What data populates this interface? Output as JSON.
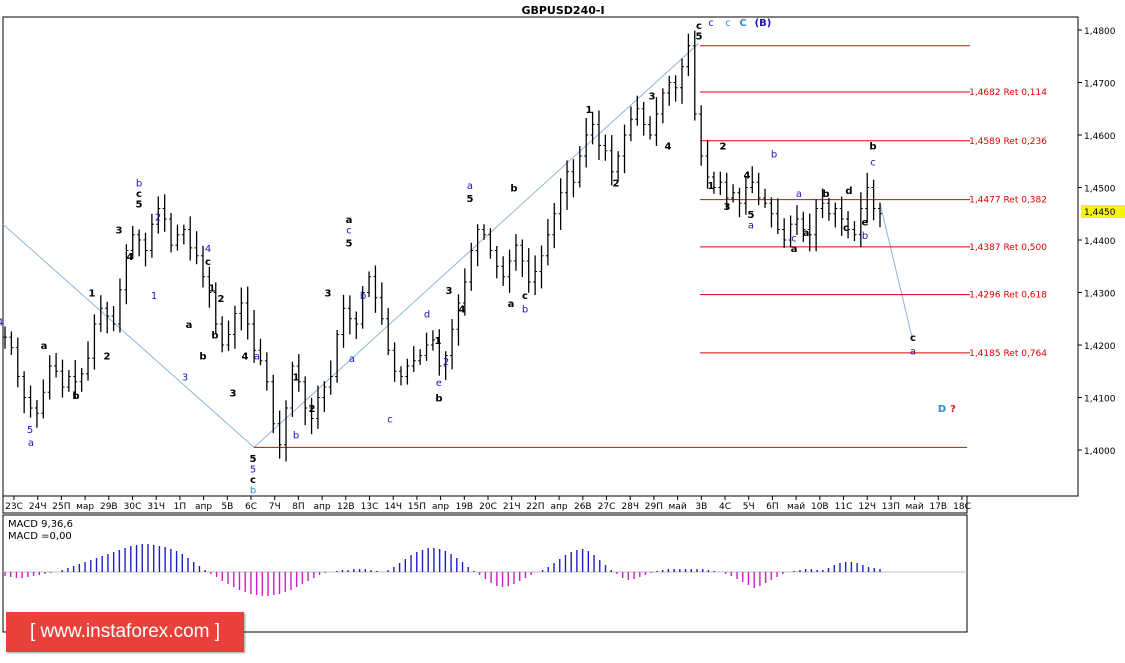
{
  "title": "GBPUSD240-I",
  "current_price": "1,4450",
  "macd": {
    "label1": "MACD 9,36,6",
    "label2": "MACD =0,00"
  },
  "watermark": "[ www.instaforex.com ]",
  "colors": {
    "bull_bar": "#000000",
    "fib": "#e00000",
    "macd_pos": "#1d1dc8",
    "macd_neg": "#c81dc8",
    "trendline": "#8fb4d9",
    "wave_dark": "#000000",
    "wave_blue": "#1717b8",
    "wave_cyan": "#2e8fd0",
    "wave_red": "#e01b2b"
  },
  "chart_data": {
    "type": "ohlc",
    "symbol": "GBPUSD",
    "timeframe": "H4",
    "ylim": [
      1.3955,
      1.481
    ],
    "y_ticks": [
      "1,4800",
      "1,4700",
      "1,4600",
      "1,4500",
      "1,4400",
      "1,4300",
      "1,4200",
      "1,4100",
      "1,4000"
    ],
    "y_tick_values": [
      1.48,
      1.47,
      1.46,
      1.45,
      1.44,
      1.43,
      1.42,
      1.41,
      1.4
    ],
    "x_ticks": [
      "23С",
      "24Ч",
      "25П",
      "мар",
      "29В",
      "30С",
      "31Ч",
      "1П",
      "апр",
      "5В",
      "6С",
      "7Ч",
      "8П",
      "апр",
      "12В",
      "13С",
      "14Ч",
      "15П",
      "апр",
      "19В",
      "20С",
      "21Ч",
      "22П",
      "апр",
      "26В",
      "27С",
      "28Ч",
      "29П",
      "май",
      "3В",
      "4С",
      "5Ч",
      "6П",
      "май",
      "10В",
      "11С",
      "12Ч",
      "13П",
      "май",
      "17В",
      "18С"
    ],
    "close_path": [
      1.4215,
      1.4195,
      1.414,
      1.41,
      1.408,
      1.407,
      1.411,
      1.416,
      1.415,
      1.412,
      1.414,
      1.413,
      1.4145,
      1.4175,
      1.424,
      1.427,
      1.4255,
      1.424,
      1.4305,
      1.438,
      1.441,
      1.44,
      1.438,
      1.443,
      1.446,
      1.444,
      1.439,
      1.441,
      1.442,
      1.4385,
      1.437,
      1.433,
      1.43,
      1.424,
      1.42,
      1.422,
      1.426,
      1.428,
      1.424,
      1.419,
      1.417,
      1.413,
      1.405,
      1.401,
      1.408,
      1.416,
      1.413,
      1.408,
      1.406,
      1.41,
      1.412,
      1.414,
      1.422,
      1.427,
      1.425,
      1.424,
      1.43,
      1.433,
      1.429,
      1.425,
      1.419,
      1.415,
      1.414,
      1.416,
      1.417,
      1.418,
      1.42,
      1.421,
      1.416,
      1.418,
      1.423,
      1.428,
      1.432,
      1.438,
      1.442,
      1.441,
      1.438,
      1.435,
      1.433,
      1.436,
      1.439,
      1.436,
      1.432,
      1.434,
      1.437,
      1.441,
      1.445,
      1.449,
      1.453,
      1.451,
      1.456,
      1.46,
      1.462,
      1.458,
      1.457,
      1.453,
      1.456,
      1.46,
      1.463,
      1.465,
      1.462,
      1.46,
      1.464,
      1.468,
      1.47,
      1.469,
      1.473,
      1.477,
      1.464,
      1.456,
      1.452,
      1.45,
      1.451,
      1.448,
      1.449,
      1.447,
      1.45,
      1.451,
      1.448,
      1.447,
      1.445,
      1.442,
      1.44,
      1.443,
      1.444,
      1.442,
      1.441,
      1.446,
      1.447,
      1.445,
      1.446,
      1.444,
      1.442,
      1.441,
      1.446,
      1.45,
      1.446,
      1.445
    ],
    "wave_labels": [
      {
        "text": "4",
        "color": "blue",
        "x": 0,
        "price": 1.4245
      },
      {
        "text": "5",
        "color": "blue",
        "x": 30,
        "price": 1.404
      },
      {
        "text": "a",
        "color": "blue",
        "x": 31,
        "price": 1.4015
      },
      {
        "text": "a",
        "color": "dark",
        "x": 44,
        "price": 1.42
      },
      {
        "text": "b",
        "color": "dark",
        "x": 76,
        "price": 1.4105
      },
      {
        "text": "1",
        "color": "dark",
        "x": 92,
        "price": 1.43
      },
      {
        "text": "2",
        "color": "dark",
        "x": 107,
        "price": 1.418
      },
      {
        "text": "3",
        "color": "dark",
        "x": 119,
        "price": 1.442
      },
      {
        "text": "4",
        "color": "dark",
        "x": 130,
        "price": 1.437
      },
      {
        "text": "5",
        "color": "dark",
        "x": 139,
        "price": 1.447
      },
      {
        "text": "c",
        "color": "dark",
        "x": 139,
        "price": 1.449
      },
      {
        "text": "b",
        "color": "blue",
        "x": 139,
        "price": 1.451
      },
      {
        "text": "2",
        "color": "blue",
        "x": 158,
        "price": 1.4445
      },
      {
        "text": "1",
        "color": "blue",
        "x": 154,
        "price": 1.4295
      },
      {
        "text": "a",
        "color": "dark",
        "x": 189,
        "price": 1.424
      },
      {
        "text": "b",
        "color": "dark",
        "x": 203,
        "price": 1.418
      },
      {
        "text": "3",
        "color": "blue",
        "x": 185,
        "price": 1.414
      },
      {
        "text": "4",
        "color": "blue",
        "x": 208,
        "price": 1.4385
      },
      {
        "text": "c",
        "color": "dark",
        "x": 208,
        "price": 1.436
      },
      {
        "text": "1",
        "color": "dark",
        "x": 212,
        "price": 1.431
      },
      {
        "text": "2",
        "color": "dark",
        "x": 221,
        "price": 1.429
      },
      {
        "text": "b",
        "color": "dark",
        "x": 215,
        "price": 1.422
      },
      {
        "text": "4",
        "color": "dark",
        "x": 245,
        "price": 1.418
      },
      {
        "text": "3",
        "color": "dark",
        "x": 233,
        "price": 1.411
      },
      {
        "text": "a",
        "color": "blue",
        "x": 257,
        "price": 1.418
      },
      {
        "text": "5",
        "color": "dark",
        "x": 253,
        "price": 1.3985
      },
      {
        "text": "5",
        "color": "blue",
        "x": 253,
        "price": 1.3965
      },
      {
        "text": "c",
        "color": "dark",
        "x": 253,
        "price": 1.3945
      },
      {
        "text": "b",
        "color": "cyan",
        "x": 253,
        "price": 1.3925
      },
      {
        "text": "1",
        "color": "dark",
        "x": 296,
        "price": 1.414
      },
      {
        "text": "2",
        "color": "dark",
        "x": 312,
        "price": 1.408
      },
      {
        "text": "b",
        "color": "blue",
        "x": 296,
        "price": 1.403
      },
      {
        "text": "3",
        "color": "dark",
        "x": 328,
        "price": 1.43
      },
      {
        "text": "a",
        "color": "dark",
        "x": 349,
        "price": 1.444
      },
      {
        "text": "c",
        "color": "blue",
        "x": 349,
        "price": 1.442
      },
      {
        "text": "5",
        "color": "dark",
        "x": 349,
        "price": 1.4395
      },
      {
        "text": "b",
        "color": "blue",
        "x": 363,
        "price": 1.4295
      },
      {
        "text": "a",
        "color": "blue",
        "x": 352,
        "price": 1.4175
      },
      {
        "text": "c",
        "color": "blue",
        "x": 390,
        "price": 1.406
      },
      {
        "text": "d",
        "color": "blue",
        "x": 427,
        "price": 1.426
      },
      {
        "text": "1",
        "color": "dark",
        "x": 438,
        "price": 1.421
      },
      {
        "text": "2",
        "color": "blue",
        "x": 446,
        "price": 1.417
      },
      {
        "text": "e",
        "color": "blue",
        "x": 439,
        "price": 1.413
      },
      {
        "text": "b",
        "color": "dark",
        "x": 439,
        "price": 1.41
      },
      {
        "text": "3",
        "color": "dark",
        "x": 449,
        "price": 1.4305
      },
      {
        "text": "4",
        "color": "dark",
        "x": 462,
        "price": 1.427
      },
      {
        "text": "5",
        "color": "dark",
        "x": 470,
        "price": 1.448
      },
      {
        "text": "a",
        "color": "blue",
        "x": 470,
        "price": 1.4505
      },
      {
        "text": "b",
        "color": "dark",
        "x": 514,
        "price": 1.45
      },
      {
        "text": "a",
        "color": "dark",
        "x": 511,
        "price": 1.428
      },
      {
        "text": "b",
        "color": "blue",
        "x": 525,
        "price": 1.427
      },
      {
        "text": "c",
        "color": "dark",
        "x": 525,
        "price": 1.4295
      },
      {
        "text": "1",
        "color": "dark",
        "x": 589,
        "price": 1.465
      },
      {
        "text": "2",
        "color": "dark",
        "x": 616,
        "price": 1.451
      },
      {
        "text": "3",
        "color": "dark",
        "x": 652,
        "price": 1.4675
      },
      {
        "text": "4",
        "color": "dark",
        "x": 668,
        "price": 1.458
      },
      {
        "text": "c",
        "color": "dark",
        "x": 699,
        "price": 1.481
      },
      {
        "text": "5",
        "color": "dark",
        "x": 699,
        "price": 1.479
      },
      {
        "text": "c",
        "color": "blue",
        "x": 711,
        "price": 1.4815
      },
      {
        "text": "c",
        "color": "cyan",
        "x": 728,
        "price": 1.4815
      },
      {
        "text": "C",
        "color": "cyan",
        "x": 743,
        "price": 1.4815
      },
      {
        "text": "(B)",
        "color": "blue",
        "x": 763,
        "price": 1.4815
      },
      {
        "text": "2",
        "color": "dark",
        "x": 723,
        "price": 1.458
      },
      {
        "text": "1",
        "color": "dark",
        "x": 711,
        "price": 1.4505
      },
      {
        "text": "3",
        "color": "dark",
        "x": 727,
        "price": 1.4465
      },
      {
        "text": "4",
        "color": "dark",
        "x": 747,
        "price": 1.4525
      },
      {
        "text": "5",
        "color": "dark",
        "x": 751,
        "price": 1.445
      },
      {
        "text": "a",
        "color": "blue",
        "x": 751,
        "price": 1.443
      },
      {
        "text": "b",
        "color": "blue",
        "x": 774,
        "price": 1.4565
      },
      {
        "text": "a",
        "color": "blue",
        "x": 799,
        "price": 1.449
      },
      {
        "text": "c",
        "color": "blue",
        "x": 794,
        "price": 1.4405
      },
      {
        "text": "a",
        "color": "dark",
        "x": 794,
        "price": 1.4385
      },
      {
        "text": "a",
        "color": "dark",
        "x": 806,
        "price": 1.4415
      },
      {
        "text": "b",
        "color": "dark",
        "x": 826,
        "price": 1.449
      },
      {
        "text": "c",
        "color": "dark",
        "x": 846,
        "price": 1.4425
      },
      {
        "text": "d",
        "color": "dark",
        "x": 849,
        "price": 1.4495
      },
      {
        "text": "e",
        "color": "dark",
        "x": 865,
        "price": 1.4435
      },
      {
        "text": "b",
        "color": "blue",
        "x": 865,
        "price": 1.441
      },
      {
        "text": "c",
        "color": "blue",
        "x": 873,
        "price": 1.455
      },
      {
        "text": "b",
        "color": "dark",
        "x": 873,
        "price": 1.458
      },
      {
        "text": "c",
        "color": "dark",
        "x": 913,
        "price": 1.4215
      },
      {
        "text": "a",
        "color": "blue",
        "x": 913,
        "price": 1.419
      },
      {
        "text": "D",
        "color": "cyan",
        "x": 942,
        "price": 1.408
      },
      {
        "text": "?",
        "color": "red",
        "x": 953,
        "price": 1.408
      }
    ],
    "fib_levels": [
      {
        "price": 1.477,
        "label": ""
      },
      {
        "price": 1.4682,
        "label": "1,4682 Ret 0,114"
      },
      {
        "price": 1.4589,
        "label": "1,4589 Ret 0,236"
      },
      {
        "price": 1.4477,
        "label": "1,4477 Ret 0,382"
      },
      {
        "price": 1.4387,
        "label": "1,4387 Ret 0,500"
      },
      {
        "price": 1.4296,
        "label": "1,4296 Ret 0,618"
      },
      {
        "price": 1.4185,
        "label": "1,4185 Ret 0,764"
      },
      {
        "price": 1.4005,
        "label": ""
      }
    ],
    "macd_values": [
      -4,
      -5,
      -6,
      -6,
      -5,
      -4,
      -3,
      -2,
      -1,
      0,
      2,
      4,
      6,
      8,
      10,
      12,
      14,
      16,
      18,
      20,
      22,
      24,
      26,
      27,
      28,
      28,
      27,
      26,
      25,
      23,
      21,
      18,
      14,
      10,
      6,
      2,
      -2,
      -5,
      -9,
      -12,
      -15,
      -18,
      -20,
      -22,
      -23,
      -24,
      -24,
      -23,
      -22,
      -20,
      -18,
      -15,
      -12,
      -9,
      -6,
      -3,
      -1,
      0,
      1,
      2,
      2,
      3,
      3,
      3,
      2,
      1,
      0,
      2,
      5,
      9,
      13,
      17,
      20,
      22,
      24,
      24,
      23,
      21,
      18,
      14,
      10,
      5,
      1,
      -3,
      -7,
      -11,
      -14,
      -15,
      -14,
      -12,
      -9,
      -6,
      -3,
      0,
      2,
      5,
      9,
      13,
      17,
      20,
      22,
      23,
      21,
      17,
      12,
      7,
      2,
      -2,
      -6,
      -8,
      -7,
      -5,
      -3,
      -1,
      1,
      2,
      3,
      3,
      3,
      3,
      3,
      3,
      3,
      2,
      1,
      0,
      -2,
      -4,
      -7,
      -10,
      -13,
      -16,
      -14,
      -11,
      -8,
      -5,
      -2,
      0,
      1,
      2,
      3,
      3,
      2,
      2,
      4,
      7,
      9,
      10,
      10,
      9,
      7,
      5,
      4,
      3
    ],
    "macd_ylim": [
      -27,
      28
    ]
  }
}
